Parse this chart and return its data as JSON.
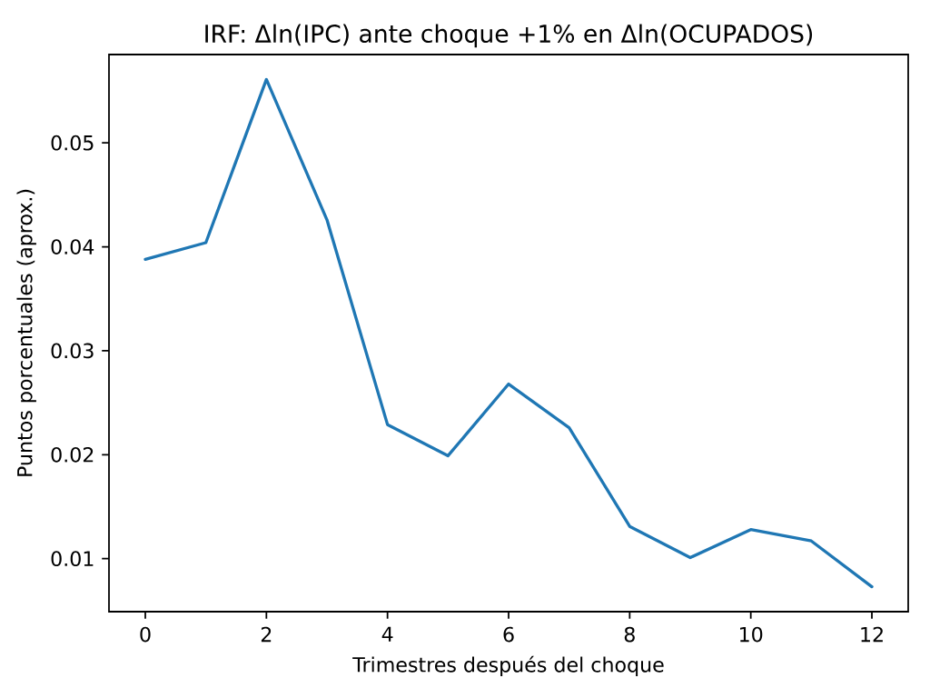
{
  "chart_data": {
    "type": "line",
    "title": "IRF: Δln(IPC) ante choque +1% en Δln(OCUPADOS)",
    "xlabel": "Trimestres después del choque",
    "ylabel": "Puntos porcentuales (aprox.)",
    "x": [
      0,
      1,
      2,
      3,
      4,
      5,
      6,
      7,
      8,
      9,
      10,
      11,
      12
    ],
    "series": [
      {
        "color": "#1f77b4",
        "values": [
          0.0388,
          0.0404,
          0.0561,
          0.0426,
          0.0229,
          0.0199,
          0.0268,
          0.0226,
          0.0131,
          0.0101,
          0.0128,
          0.0117,
          0.0073
        ]
      }
    ],
    "xlim": [
      -0.6,
      12.6
    ],
    "ylim": [
      0.0049,
      0.0585
    ],
    "xticks": [
      0,
      2,
      4,
      6,
      8,
      10,
      12
    ],
    "yticks": [
      0.01,
      0.02,
      0.03,
      0.04,
      0.05
    ],
    "line_style": "solid"
  }
}
